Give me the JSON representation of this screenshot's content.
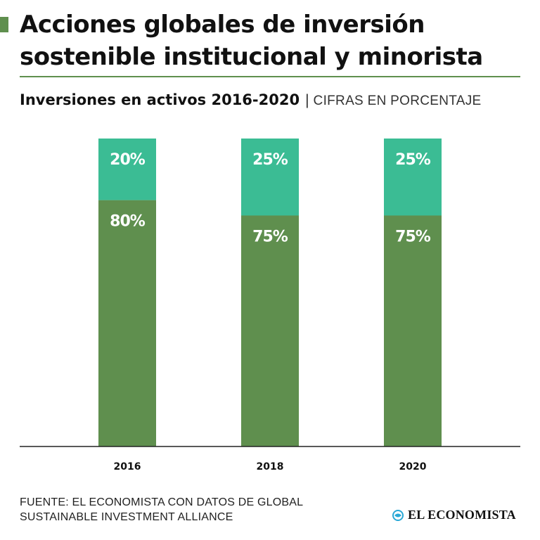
{
  "title": {
    "line1": "Acciones globales de inversión",
    "line2": "sostenible institucional y minorista"
  },
  "subtitle": "Inversiones en activos 2016-2020",
  "separator": "|",
  "units_note": "CIFRAS EN PORCENTAJE",
  "source": {
    "line1": "FUENTE: EL ECONOMISTA CON DATOS DE GLOBAL",
    "line2": "SUSTAINABLE INVESTMENT ALLIANCE"
  },
  "brand": {
    "name": "EL ECONOMISTA",
    "icon": "globe-icon"
  },
  "colors": {
    "accent": "#5f8f4e",
    "dark_green": "#5f8f4e",
    "teal": "#3bbc94",
    "bar_text": "#ffffff",
    "brand_icon": "#29a8d6"
  },
  "chart_data": {
    "type": "bar",
    "stacked": true,
    "orientation": "vertical",
    "categories": [
      "2016",
      "2018",
      "2020"
    ],
    "series": [
      {
        "values": [
          80,
          75,
          75
        ],
        "labels": [
          "80%",
          "75%",
          "75%"
        ],
        "color": "#5f8f4e"
      },
      {
        "values": [
          20,
          25,
          25
        ],
        "labels": [
          "20%",
          "25%",
          "25%"
        ],
        "color": "#3bbc94"
      }
    ],
    "ylim": [
      0,
      100
    ],
    "grid": false,
    "legend": "none",
    "title": "Inversiones en activos 2016-2020",
    "xlabel": "",
    "ylabel": ""
  }
}
